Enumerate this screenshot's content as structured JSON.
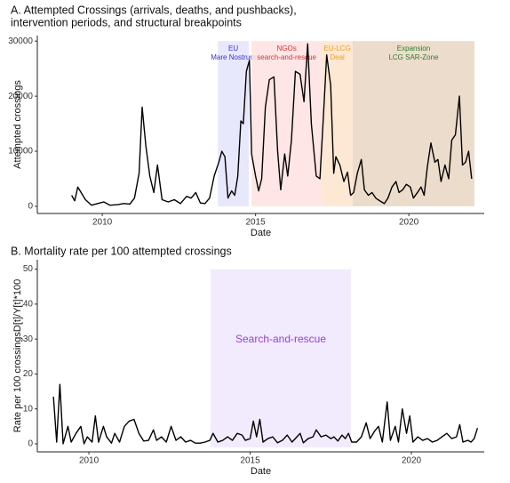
{
  "chart_data": [
    {
      "type": "line",
      "title": [
        "A. Attempted Crossings (arrivals, deaths, and pushbacks),",
        " intervention periods, and structural breakpoints"
      ],
      "x_label": "Date",
      "y_label": "Attempted crossings",
      "color": "#000000",
      "xlim": [
        2007.88,
        2022.46
      ],
      "xticks": [
        2010,
        2015,
        2020
      ],
      "ylim": [
        -1300,
        31000
      ],
      "yticks": [
        0,
        10000,
        20000,
        30000
      ],
      "periods": [
        {
          "label": [
            "EU",
            "Mare Nostrum"
          ],
          "start": 2013.77,
          "end": 2014.78,
          "ymin": 0,
          "ymax": 30000,
          "color": "#e4e4fb",
          "label_color": "#3636d0"
        },
        {
          "label": [
            "NGOs",
            "search-and-rescue"
          ],
          "start": 2014.87,
          "end": 2017.16,
          "ymin": 0,
          "ymax": 30000,
          "color": "#fde2e0",
          "label_color": "#e0303a"
        },
        {
          "label": [
            "EU-LCG",
            "Deal"
          ],
          "start": 2017.16,
          "end": 2018.17,
          "ymin": 0,
          "ymax": 30000,
          "color": "#fde4cd",
          "label_color": "#f0a020"
        },
        {
          "label": [
            "Expansion",
            "LCG SAR-Zone"
          ],
          "start": 2018.17,
          "end": 2022.14,
          "ymin": 0,
          "ymax": 30000,
          "color": "#e9d6c2",
          "label_color": "#2e7d32"
        }
      ],
      "x": [
        2009.0,
        2009.1,
        2009.2,
        2009.45,
        2009.65,
        2009.85,
        2010.05,
        2010.25,
        2010.5,
        2010.7,
        2010.9,
        2011.05,
        2011.2,
        2011.3,
        2011.42,
        2011.55,
        2011.68,
        2011.8,
        2011.95,
        2012.15,
        2012.35,
        2012.55,
        2012.75,
        2012.9,
        2013.05,
        2013.2,
        2013.35,
        2013.5,
        2013.65,
        2013.8,
        2013.9,
        2014.0,
        2014.1,
        2014.22,
        2014.32,
        2014.42,
        2014.52,
        2014.6,
        2014.7,
        2014.8,
        2014.87,
        2015.0,
        2015.1,
        2015.2,
        2015.32,
        2015.45,
        2015.6,
        2015.72,
        2015.82,
        2015.95,
        2016.05,
        2016.17,
        2016.3,
        2016.45,
        2016.58,
        2016.7,
        2016.82,
        2016.98,
        2017.1,
        2017.22,
        2017.32,
        2017.45,
        2017.55,
        2017.62,
        2017.75,
        2017.88,
        2018.0,
        2018.1,
        2018.2,
        2018.32,
        2018.45,
        2018.55,
        2018.68,
        2018.8,
        2018.92,
        2019.05,
        2019.2,
        2019.32,
        2019.45,
        2019.58,
        2019.68,
        2019.8,
        2019.92,
        2020.05,
        2020.15,
        2020.28,
        2020.4,
        2020.5,
        2020.6,
        2020.72,
        2020.85,
        2020.95,
        2021.05,
        2021.18,
        2021.3,
        2021.4,
        2021.52,
        2021.65,
        2021.75,
        2021.85,
        2021.95,
        2022.05
      ],
      "values": [
        2000,
        1000,
        3500,
        1200,
        200,
        500,
        800,
        200,
        300,
        500,
        400,
        1500,
        6000,
        18000,
        11000,
        5500,
        2500,
        7500,
        1200,
        800,
        1200,
        500,
        1800,
        1500,
        2500,
        600,
        500,
        1500,
        5500,
        8000,
        10000,
        9000,
        1500,
        2800,
        2000,
        5500,
        15500,
        15000,
        24500,
        26500,
        9500,
        5500,
        2800,
        5000,
        18000,
        23000,
        23500,
        10000,
        3000,
        9500,
        5500,
        12000,
        24500,
        24000,
        19000,
        29500,
        15000,
        5500,
        5000,
        17000,
        27500,
        22000,
        6000,
        9000,
        7500,
        4500,
        6200,
        2000,
        2500,
        6000,
        8500,
        3000,
        2000,
        2500,
        1500,
        1000,
        500,
        1500,
        3500,
        4500,
        2500,
        3000,
        4000,
        3500,
        1500,
        2500,
        3500,
        2000,
        7000,
        11500,
        8000,
        8500,
        4500,
        7500,
        5000,
        12000,
        13000,
        20000,
        7500,
        8000,
        10000,
        5000
      ]
    },
    {
      "type": "line",
      "title": [
        "B. Mortality rate per 100 attempted crossings"
      ],
      "x_label": "Date",
      "y_label": "Rate per 100 crossingsD[t]/Y[t]*100",
      "color": "#000000",
      "xlim": [
        2008.4,
        2022.26
      ],
      "xticks": [
        2010,
        2015,
        2020
      ],
      "ylim": [
        -2.3,
        52.7
      ],
      "yticks": [
        0,
        10,
        20,
        30,
        40,
        50
      ],
      "periods": [
        {
          "label": [
            "Search-and-rescue"
          ],
          "start": 2013.77,
          "end": 2018.13,
          "ymin": -1,
          "ymax": 50,
          "color": "#efe7fd",
          "label_color": "#9b3fd6"
        }
      ],
      "x": [
        2008.9,
        2009.0,
        2009.1,
        2009.2,
        2009.35,
        2009.45,
        2009.6,
        2009.75,
        2009.85,
        2009.95,
        2010.1,
        2010.2,
        2010.3,
        2010.45,
        2010.55,
        2010.7,
        2010.8,
        2010.95,
        2011.1,
        2011.25,
        2011.4,
        2011.55,
        2011.7,
        2011.85,
        2012.0,
        2012.1,
        2012.25,
        2012.4,
        2012.55,
        2012.7,
        2012.85,
        2013.0,
        2013.15,
        2013.3,
        2013.45,
        2013.6,
        2013.75,
        2013.85,
        2014.0,
        2014.15,
        2014.3,
        2014.45,
        2014.6,
        2014.75,
        2014.85,
        2015.0,
        2015.1,
        2015.2,
        2015.3,
        2015.4,
        2015.55,
        2015.7,
        2015.85,
        2016.0,
        2016.15,
        2016.3,
        2016.45,
        2016.55,
        2016.65,
        2016.8,
        2016.95,
        2017.05,
        2017.2,
        2017.35,
        2017.5,
        2017.6,
        2017.72,
        2017.85,
        2017.95,
        2018.05,
        2018.15,
        2018.3,
        2018.45,
        2018.6,
        2018.72,
        2018.85,
        2018.98,
        2019.1,
        2019.25,
        2019.35,
        2019.5,
        2019.6,
        2019.72,
        2019.85,
        2019.95,
        2020.05,
        2020.2,
        2020.35,
        2020.5,
        2020.65,
        2020.8,
        2020.95,
        2021.1,
        2021.25,
        2021.4,
        2021.5,
        2021.6,
        2021.75,
        2021.85,
        2021.95,
        2022.05
      ],
      "values": [
        13.5,
        0.5,
        17,
        0,
        5,
        0.5,
        3,
        5,
        0,
        2,
        0.5,
        8,
        0.5,
        5,
        2,
        0.2,
        3,
        0.5,
        5,
        6.5,
        7,
        3,
        0.8,
        1,
        4,
        1,
        2,
        0.5,
        5,
        1,
        2,
        0.5,
        1,
        0.2,
        0.2,
        0.5,
        1,
        3,
        0.5,
        1,
        2,
        1,
        3,
        2.5,
        1,
        1.5,
        6.5,
        2,
        7,
        0.5,
        1.5,
        2,
        0.3,
        1,
        2.5,
        0.5,
        2,
        3,
        0.3,
        1.5,
        2,
        4,
        2,
        2.5,
        1.5,
        2,
        0.8,
        2.5,
        1.5,
        3,
        0.5,
        0.5,
        2,
        6,
        1.5,
        3.5,
        5,
        0.5,
        12,
        1,
        5,
        0.5,
        10,
        3,
        8,
        0.5,
        2,
        1,
        1.5,
        0.5,
        1,
        2,
        3,
        1.5,
        2,
        5.5,
        0.5,
        1,
        0.5,
        1.5,
        4.5
      ]
    }
  ]
}
